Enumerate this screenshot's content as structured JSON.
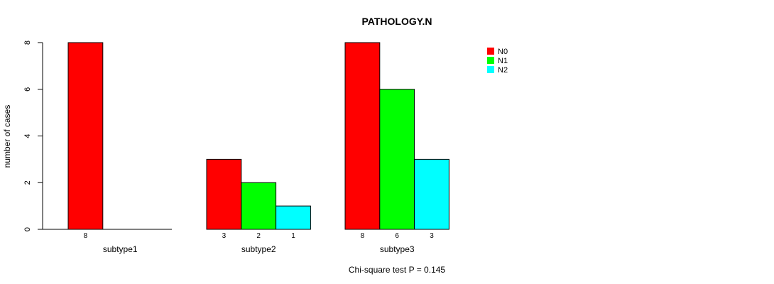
{
  "chart_data": {
    "type": "bar",
    "title": "PATHOLOGY.N",
    "ylabel": "number of cases",
    "footnote": "Chi-square test P = 0.145",
    "categories": [
      "subtype1",
      "subtype2",
      "subtype3"
    ],
    "yticks": [
      "0",
      "2",
      "4",
      "6",
      "8"
    ],
    "ylim": [
      0,
      8
    ],
    "grid": false,
    "legend_position": "top-right",
    "series": [
      {
        "name": "N0",
        "color": "#FF0000",
        "values": [
          8,
          3,
          8
        ]
      },
      {
        "name": "N1",
        "color": "#00FF00",
        "values": [
          0,
          2,
          6
        ]
      },
      {
        "name": "N2",
        "color": "#00FFFF",
        "values": [
          0,
          1,
          3
        ]
      }
    ],
    "count_labels": [
      [
        "8",
        "",
        ""
      ],
      [
        "3",
        "2",
        "1"
      ],
      [
        "8",
        "6",
        "3"
      ]
    ]
  }
}
